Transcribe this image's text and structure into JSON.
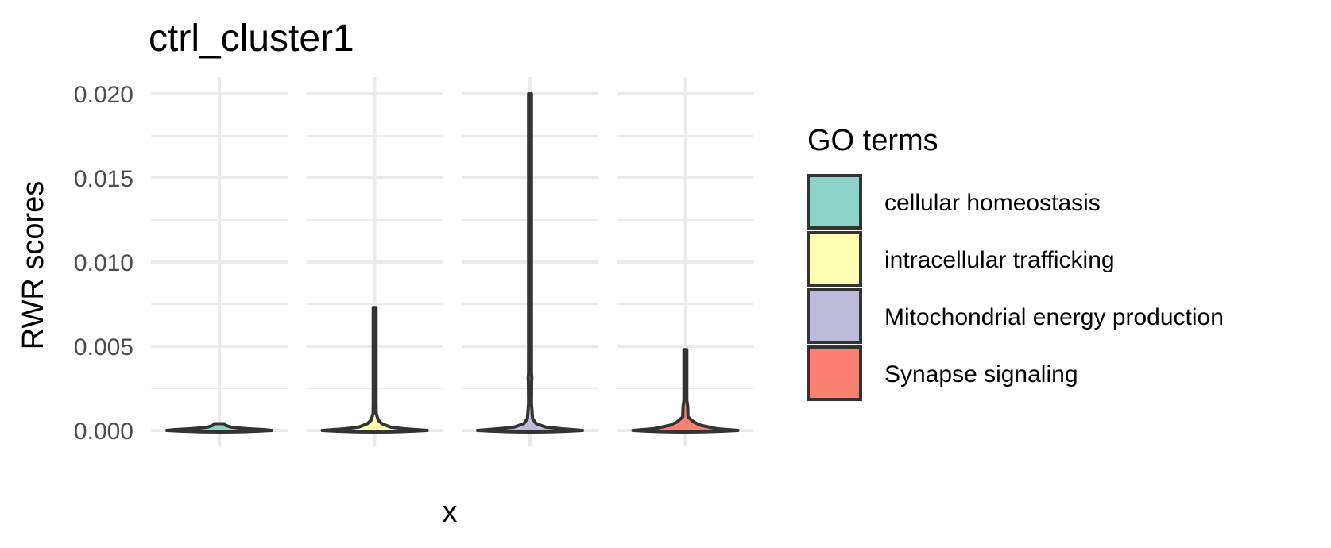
{
  "chart_data": {
    "type": "violin",
    "title": "ctrl_cluster1",
    "xlabel": "x",
    "ylabel": "RWR scores",
    "ylim": [
      0,
      0.02
    ],
    "yticks": [
      "0.000",
      "0.005",
      "0.010",
      "0.015",
      "0.020"
    ],
    "grid": true,
    "legend": {
      "title": "GO terms",
      "position": "right",
      "entries": [
        {
          "label": "cellular homeostasis",
          "color": "#8DD3C7"
        },
        {
          "label": "intracellular trafficking",
          "color": "#FFFFB3"
        },
        {
          "label": "Mitochondrial energy production",
          "color": "#BEBADA"
        },
        {
          "label": "Synapse signaling",
          "color": "#FB8072"
        }
      ]
    },
    "series": [
      {
        "name": "cellular homeostasis",
        "color": "#8DD3C7",
        "min": 0.0,
        "max": 0.0004,
        "profile": [
          [
            0.0,
            1.0
          ],
          [
            5e-05,
            0.85
          ],
          [
            0.0001,
            0.55
          ],
          [
            0.00015,
            0.35
          ],
          [
            0.0002,
            0.22
          ],
          [
            0.0003,
            0.12
          ],
          [
            0.0004,
            0.1
          ]
        ]
      },
      {
        "name": "intracellular trafficking",
        "color": "#FFFFB3",
        "min": 0.0,
        "max": 0.0073,
        "profile": [
          [
            0.0,
            1.0
          ],
          [
            0.0001,
            0.55
          ],
          [
            0.0002,
            0.3
          ],
          [
            0.0004,
            0.14
          ],
          [
            0.0006,
            0.07
          ],
          [
            0.001,
            0.03
          ],
          [
            0.0016,
            0.02
          ],
          [
            0.0019,
            0.02
          ],
          [
            0.003,
            0.01
          ],
          [
            0.0073,
            0.008
          ]
        ]
      },
      {
        "name": "Mitochondrial energy production",
        "color": "#BEBADA",
        "min": 0.0,
        "max": 0.02,
        "profile": [
          [
            0.0,
            1.0
          ],
          [
            0.0001,
            0.6
          ],
          [
            0.0002,
            0.3
          ],
          [
            0.0004,
            0.12
          ],
          [
            0.0007,
            0.05
          ],
          [
            0.0016,
            0.015
          ],
          [
            0.0028,
            0.03
          ],
          [
            0.0031,
            0.035
          ],
          [
            0.0034,
            0.01
          ],
          [
            0.0056,
            0.015
          ],
          [
            0.008,
            0.007
          ],
          [
            0.02,
            0.007
          ]
        ]
      },
      {
        "name": "Synapse signaling",
        "color": "#FB8072",
        "min": 0.0,
        "max": 0.0048,
        "profile": [
          [
            0.0,
            1.0
          ],
          [
            0.0001,
            0.6
          ],
          [
            0.0003,
            0.3
          ],
          [
            0.0005,
            0.16
          ],
          [
            0.0008,
            0.05
          ],
          [
            0.0014,
            0.045
          ],
          [
            0.0018,
            0.01
          ],
          [
            0.0048,
            0.008
          ]
        ]
      }
    ]
  }
}
